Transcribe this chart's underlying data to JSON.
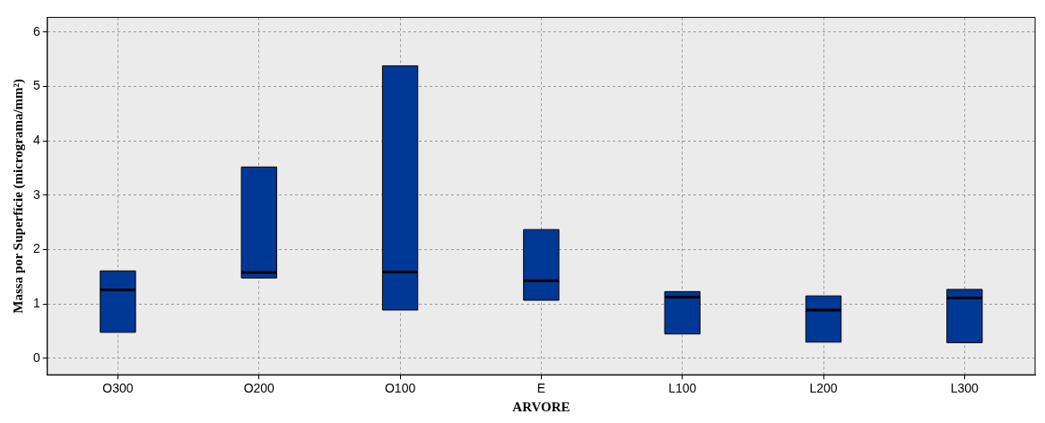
{
  "chart_data": {
    "type": "box",
    "xlabel": "ARVORE",
    "ylabel": "Massa por Superfície (micrograma/mm²)",
    "categories": [
      "O300",
      "O200",
      "O100",
      "E",
      "L100",
      "L200",
      "L300"
    ],
    "color": "#003896",
    "boxes": [
      {
        "low": 0.48,
        "q1": 0.48,
        "median": 1.26,
        "q3": 1.61,
        "high": 1.61
      },
      {
        "low": 1.48,
        "q1": 1.48,
        "median": 1.58,
        "q3": 3.52,
        "high": 3.52
      },
      {
        "low": 0.89,
        "q1": 0.89,
        "median": 1.59,
        "q3": 5.38,
        "high": 5.38
      },
      {
        "low": 1.07,
        "q1": 1.07,
        "median": 1.43,
        "q3": 2.37,
        "high": 2.37
      },
      {
        "low": 0.45,
        "q1": 0.45,
        "median": 1.13,
        "q3": 1.23,
        "high": 1.23
      },
      {
        "low": 0.3,
        "q1": 0.3,
        "median": 0.89,
        "q3": 1.15,
        "high": 1.15
      },
      {
        "low": 0.29,
        "q1": 0.29,
        "median": 1.11,
        "q3": 1.27,
        "high": 1.27
      }
    ],
    "ylim": [
      -0.3,
      6.27
    ],
    "yticks": [
      0,
      1,
      2,
      3,
      4,
      5,
      6
    ],
    "grid": true,
    "legend": false
  }
}
